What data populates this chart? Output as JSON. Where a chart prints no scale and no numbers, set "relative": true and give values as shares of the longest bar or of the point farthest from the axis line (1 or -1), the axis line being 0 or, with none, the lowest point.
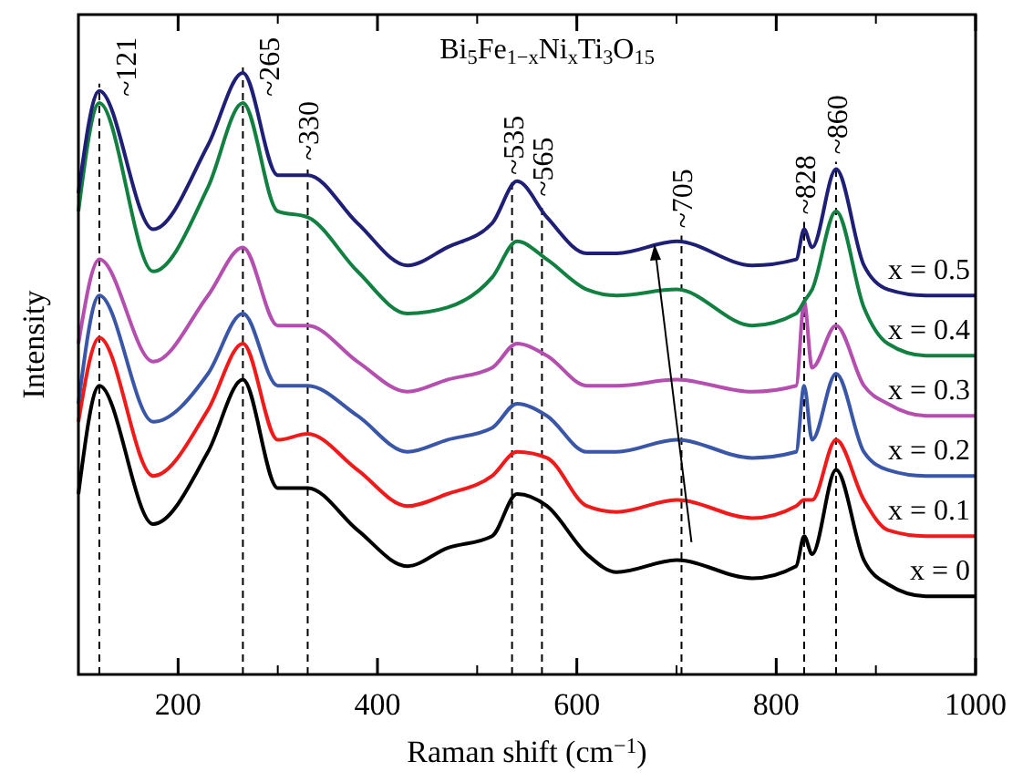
{
  "chart_data": {
    "type": "line",
    "relative": true,
    "title": "Bi$_{5}$Fe$_{1−x}$Ni$_{x}$Ti$_{3}$O$_{15}$",
    "xlabel": "Raman shift (cm$^{−1}$)",
    "ylabel": "Intensity",
    "x": [
      100,
      121,
      175,
      230,
      265,
      300,
      330,
      380,
      430,
      470,
      515,
      540,
      570,
      610,
      640,
      700,
      776,
      820,
      828,
      836,
      860,
      888,
      912,
      950,
      1000
    ],
    "xlim": [
      100,
      1000
    ],
    "xticks": [
      200,
      400,
      600,
      800,
      1000
    ],
    "line_style": "solid",
    "marker": "none",
    "series": [
      {
        "name": "x = 0",
        "color": "#000000",
        "values": [
          0.3,
          0.48,
          0.25,
          0.37,
          0.49,
          0.31,
          0.31,
          0.24,
          0.18,
          0.21,
          0.23,
          0.3,
          0.28,
          0.2,
          0.17,
          0.19,
          0.16,
          0.18,
          0.23,
          0.2,
          0.34,
          0.19,
          0.15,
          0.13,
          0.13
        ]
      },
      {
        "name": "x = 0.1",
        "color": "#f01a1a",
        "values": [
          0.42,
          0.56,
          0.33,
          0.44,
          0.55,
          0.39,
          0.4,
          0.34,
          0.28,
          0.3,
          0.33,
          0.37,
          0.36,
          0.28,
          0.27,
          0.29,
          0.26,
          0.28,
          0.29,
          0.29,
          0.39,
          0.29,
          0.24,
          0.23,
          0.23
        ]
      },
      {
        "name": "x = 0.2",
        "color": "#3a56a8",
        "values": [
          0.45,
          0.63,
          0.42,
          0.5,
          0.6,
          0.48,
          0.48,
          0.43,
          0.37,
          0.39,
          0.41,
          0.45,
          0.43,
          0.37,
          0.37,
          0.39,
          0.36,
          0.37,
          0.48,
          0.39,
          0.5,
          0.37,
          0.34,
          0.33,
          0.33
        ]
      },
      {
        "name": "x = 0.3",
        "color": "#b44fb0",
        "values": [
          0.55,
          0.69,
          0.52,
          0.63,
          0.71,
          0.58,
          0.58,
          0.52,
          0.47,
          0.49,
          0.51,
          0.55,
          0.53,
          0.48,
          0.48,
          0.49,
          0.47,
          0.48,
          0.62,
          0.51,
          0.58,
          0.48,
          0.45,
          0.43,
          0.43
        ]
      },
      {
        "name": "x = 0.4",
        "color": "#118040",
        "values": [
          0.77,
          0.95,
          0.67,
          0.81,
          0.95,
          0.77,
          0.76,
          0.67,
          0.6,
          0.61,
          0.66,
          0.72,
          0.69,
          0.64,
          0.63,
          0.64,
          0.58,
          0.6,
          0.62,
          0.64,
          0.77,
          0.61,
          0.55,
          0.53,
          0.53
        ]
      },
      {
        "name": "x = 0.5",
        "color": "#1f1f78",
        "values": [
          0.8,
          0.97,
          0.74,
          0.88,
          1.0,
          0.83,
          0.83,
          0.75,
          0.68,
          0.71,
          0.75,
          0.82,
          0.76,
          0.7,
          0.7,
          0.72,
          0.68,
          0.69,
          0.74,
          0.71,
          0.84,
          0.68,
          0.64,
          0.63,
          0.63
        ]
      }
    ],
    "ref_lines": [
      {
        "axis": "x",
        "value": 121,
        "label": "~121",
        "line_style": "dashed"
      },
      {
        "axis": "x",
        "value": 265,
        "label": "~265",
        "line_style": "dashed"
      },
      {
        "axis": "x",
        "value": 330,
        "label": "~330",
        "line_style": "dashed"
      },
      {
        "axis": "x",
        "value": 535,
        "label": "~535",
        "line_style": "dashed"
      },
      {
        "axis": "x",
        "value": 565,
        "label": "~565",
        "line_style": "dashed"
      },
      {
        "axis": "x",
        "value": 705,
        "label": "~705",
        "line_style": "dashed"
      },
      {
        "axis": "x",
        "value": 828,
        "label": "~828",
        "line_style": "dashed"
      },
      {
        "axis": "x",
        "value": 860,
        "label": "~860",
        "line_style": "dashed"
      }
    ]
  }
}
